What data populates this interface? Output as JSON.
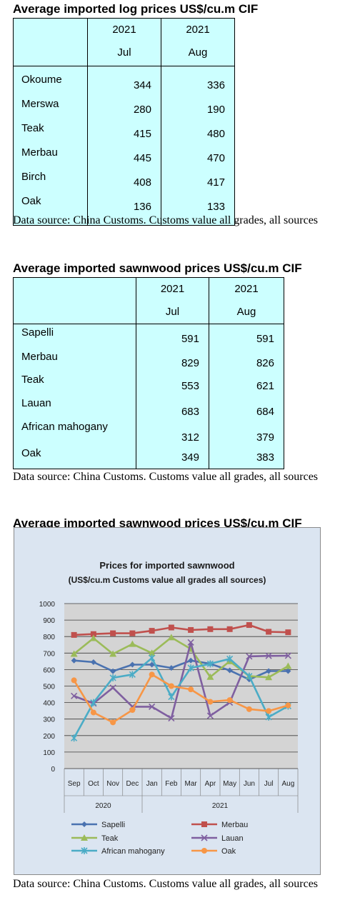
{
  "log_table": {
    "title": "Average imported log prices US$/cu.m CIF",
    "columns": [
      {
        "year": "2021",
        "month": "Jul"
      },
      {
        "year": "2021",
        "month": "Aug"
      }
    ],
    "rows": [
      {
        "name": "Okoume",
        "jul": "344",
        "aug": "336"
      },
      {
        "name": "Merswa",
        "jul": "280",
        "aug": "190"
      },
      {
        "name": "Teak",
        "jul": "415",
        "aug": "480"
      },
      {
        "name": "Merbau",
        "jul": "445",
        "aug": "470"
      },
      {
        "name": "Birch",
        "jul": "408",
        "aug": "417"
      },
      {
        "name": "Oak",
        "jul": "136",
        "aug": "133"
      }
    ],
    "source": "Data source: China Customs. Customs value all grades, all sources"
  },
  "sawn_table": {
    "title": "Average imported sawnwood prices US$/cu.m CIF",
    "columns": [
      {
        "year": "2021",
        "month": "Jul"
      },
      {
        "year": "2021",
        "month": "Aug"
      }
    ],
    "rows": [
      {
        "name": "Sapelli",
        "jul": "591",
        "aug": "591"
      },
      {
        "name": "Merbau",
        "jul": "829",
        "aug": "826"
      },
      {
        "name": "Teak",
        "jul": "553",
        "aug": "621"
      },
      {
        "name": "Lauan",
        "jul": "683",
        "aug": "684"
      },
      {
        "name": "African mahogany",
        "jul": "312",
        "aug": "379"
      },
      {
        "name": "Oak",
        "jul": "349",
        "aug": "383"
      }
    ],
    "source": "Data source: China Customs. Customs value all grades, all sources"
  },
  "chart_section": {
    "title": "Average imported sawnwood prices US$/cu.m CIF",
    "source": "Data source: China Customs. Customs value all grades, all sources"
  },
  "chart_data": {
    "type": "line",
    "title": "Prices for imported sawnwood",
    "subtitle": "(US$/cu.m Customs value all grades all sources)",
    "x": [
      "Sep",
      "Oct",
      "Nov",
      "Dec",
      "Jan",
      "Feb",
      "Mar",
      "Apr",
      "May",
      "Jun",
      "Jul",
      "Aug"
    ],
    "x_groups": [
      {
        "label": "2020",
        "from": 0,
        "to": 3
      },
      {
        "label": "2021",
        "from": 4,
        "to": 11
      }
    ],
    "ylim": [
      0,
      1000
    ],
    "yticks": [
      "0",
      "100",
      "200",
      "300",
      "400",
      "500",
      "600",
      "700",
      "800",
      "900",
      "1000"
    ],
    "grid": true,
    "legend": "bottom",
    "series": [
      {
        "name": "Sapelli",
        "color": "#4a72b0",
        "marker": "diamond",
        "values": [
          655,
          645,
          590,
          630,
          630,
          610,
          655,
          635,
          595,
          540,
          591,
          591
        ]
      },
      {
        "name": "Merbau",
        "color": "#c0504d",
        "marker": "square",
        "values": [
          810,
          815,
          820,
          820,
          835,
          855,
          840,
          845,
          845,
          870,
          829,
          826
        ]
      },
      {
        "name": "Teak",
        "color": "#9bbb59",
        "marker": "triangle",
        "values": [
          695,
          790,
          695,
          755,
          700,
          795,
          725,
          555,
          650,
          560,
          553,
          621
        ]
      },
      {
        "name": "Lauan",
        "color": "#7f5fa0",
        "marker": "x",
        "values": [
          440,
          395,
          490,
          375,
          375,
          305,
          765,
          320,
          400,
          680,
          683,
          684
        ]
      },
      {
        "name": "African mahogany",
        "color": "#4bacc6",
        "marker": "star",
        "values": [
          185,
          400,
          550,
          570,
          670,
          435,
          610,
          635,
          665,
          560,
          312,
          379
        ]
      },
      {
        "name": "Oak",
        "color": "#f79646",
        "marker": "circle",
        "values": [
          535,
          340,
          280,
          355,
          570,
          500,
          480,
          405,
          415,
          360,
          349,
          383
        ]
      }
    ]
  }
}
